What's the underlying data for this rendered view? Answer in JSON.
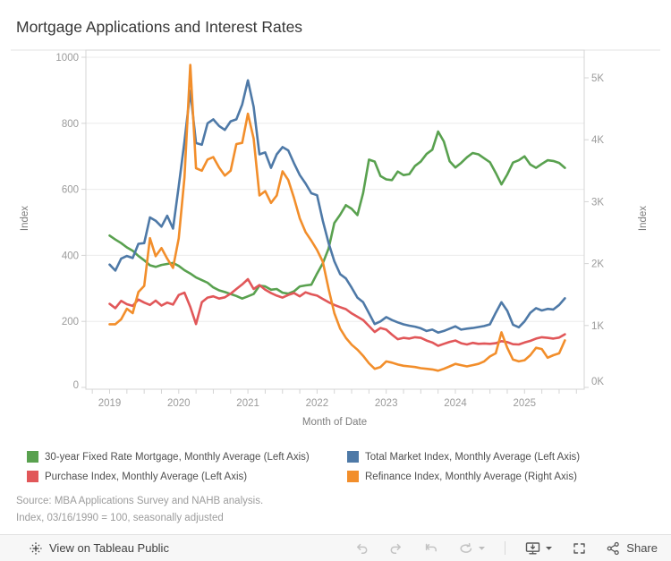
{
  "header": {
    "title": "Mortgage Applications and Interest Rates"
  },
  "chart_data": {
    "type": "line",
    "title": "Mortgage Applications and Interest Rates",
    "xlabel": "Month of Date",
    "x_axis": {
      "title": "Month of Date",
      "tick_years": [
        2019,
        2020,
        2021,
        2022,
        2023,
        2024,
        2025
      ],
      "tick_labels": [
        "2019",
        "2020",
        "2021",
        "2022",
        "2023",
        "2024",
        "2025"
      ],
      "start_month": "2019-01",
      "end_month": "2025-08",
      "minor_ticks": "quarterly"
    },
    "left_axis": {
      "title": "Index",
      "ticks": [
        0,
        200,
        400,
        600,
        800,
        1000
      ],
      "tick_labels": [
        "0",
        "200",
        "400",
        "600",
        "800",
        "1000"
      ],
      "range": [
        0,
        1022
      ]
    },
    "right_axis": {
      "title": "Index",
      "ticks": [
        0,
        1,
        2,
        3,
        4,
        5
      ],
      "tick_labels": [
        "0K",
        "1K",
        "2K",
        "3K",
        "4K",
        "5K"
      ],
      "range_k": [
        0,
        5.45
      ]
    },
    "grid": "horizontal",
    "legend_position": "bottom",
    "series": [
      {
        "name": "30-year Fixed Rate Mortgage, Monthly Average (Left Axis)",
        "axis": "left",
        "color": "#59a14f",
        "values": [
          460,
          448,
          437,
          424,
          414,
          398,
          385,
          370,
          365,
          371,
          374,
          377,
          368,
          355,
          345,
          333,
          325,
          317,
          303,
          294,
          289,
          283,
          277,
          269,
          276,
          283,
          308,
          306,
          296,
          298,
          287,
          284,
          291,
          306,
          309,
          311,
          345,
          376,
          421,
          498,
          523,
          552,
          541,
          522,
          589,
          690,
          684,
          640,
          630,
          628,
          654,
          643,
          646,
          671,
          684,
          707,
          720,
          775,
          745,
          685,
          666,
          680,
          697,
          710,
          706,
          694,
          682,
          650,
          615,
          645,
          681,
          688,
          700,
          675,
          665,
          677,
          688,
          686,
          680,
          665
        ]
      },
      {
        "name": "Total Market Index, Monthly Average (Left Axis)",
        "axis": "left",
        "color": "#4e79a7",
        "values": [
          372,
          354,
          390,
          398,
          392,
          435,
          437,
          515,
          505,
          487,
          520,
          481,
          610,
          745,
          898,
          740,
          735,
          800,
          812,
          792,
          780,
          806,
          812,
          857,
          930,
          850,
          706,
          712,
          665,
          706,
          728,
          718,
          679,
          643,
          618,
          588,
          582,
          505,
          437,
          382,
          343,
          330,
          302,
          272,
          258,
          225,
          192,
          200,
          213,
          204,
          197,
          191,
          187,
          184,
          179,
          171,
          175,
          166,
          171,
          178,
          185,
          175,
          178,
          180,
          183,
          186,
          191,
          226,
          258,
          232,
          190,
          182,
          200,
          226,
          240,
          233,
          238,
          236,
          250,
          270
        ]
      },
      {
        "name": "Purchase Index, Monthly Average (Left Axis)",
        "axis": "left",
        "color": "#e15759",
        "values": [
          253,
          240,
          262,
          252,
          247,
          266,
          257,
          250,
          263,
          248,
          257,
          251,
          280,
          287,
          244,
          192,
          258,
          272,
          276,
          269,
          273,
          284,
          298,
          312,
          328,
          298,
          310,
          296,
          286,
          278,
          272,
          280,
          286,
          276,
          288,
          282,
          278,
          268,
          258,
          250,
          243,
          237,
          224,
          214,
          204,
          186,
          168,
          180,
          175,
          160,
          146,
          150,
          148,
          152,
          150,
          142,
          136,
          126,
          132,
          138,
          142,
          134,
          130,
          135,
          132,
          133,
          132,
          134,
          140,
          137,
          131,
          130,
          136,
          141,
          148,
          152,
          150,
          148,
          151,
          161
        ]
      },
      {
        "name": "Refinance Index, Monthly Average (Right Axis)",
        "axis": "right",
        "color": "#f28e2b",
        "values_k": [
          1.02,
          1.02,
          1.1,
          1.27,
          1.2,
          1.54,
          1.64,
          2.41,
          2.12,
          2.25,
          2.08,
          1.93,
          2.41,
          3.39,
          5.21,
          3.54,
          3.5,
          3.68,
          3.72,
          3.55,
          3.42,
          3.5,
          3.93,
          3.95,
          4.42,
          4.02,
          3.1,
          3.17,
          2.98,
          3.1,
          3.49,
          3.35,
          3.06,
          2.73,
          2.51,
          2.37,
          2.22,
          2.03,
          1.59,
          1.2,
          0.95,
          0.8,
          0.69,
          0.61,
          0.51,
          0.39,
          0.3,
          0.33,
          0.42,
          0.4,
          0.37,
          0.35,
          0.34,
          0.33,
          0.31,
          0.3,
          0.29,
          0.27,
          0.3,
          0.34,
          0.38,
          0.36,
          0.34,
          0.36,
          0.38,
          0.42,
          0.5,
          0.55,
          0.89,
          0.64,
          0.45,
          0.42,
          0.44,
          0.52,
          0.64,
          0.62,
          0.48,
          0.52,
          0.55,
          0.76
        ]
      }
    ]
  },
  "legend": {
    "items": [
      {
        "label": "30-year Fixed Rate Mortgage, Monthly Average (Left Axis)",
        "color": "#59a14f"
      },
      {
        "label": "Total Market Index, Monthly Average (Left Axis)",
        "color": "#4e79a7"
      },
      {
        "label": "Purchase Index, Monthly Average (Left Axis)",
        "color": "#e15759"
      },
      {
        "label": "Refinance Index, Monthly Average (Right Axis)",
        "color": "#f28e2b"
      }
    ]
  },
  "source": {
    "line1": "Source: MBA Applications Survey and NAHB analysis.",
    "line2": "Index, 03/16/1990 = 100, seasonally adjusted"
  },
  "toolbar": {
    "view_label": "View on Tableau Public",
    "share_label": "Share",
    "icons": [
      "tableau-logo-icon",
      "undo-icon",
      "redo-icon",
      "revert-icon",
      "refresh-icon",
      "refresh-options-caret-icon",
      "download-icon",
      "download-options-caret-icon",
      "fullscreen-icon",
      "share-icon"
    ]
  },
  "colors": {
    "grid": "#ebebeb",
    "pane_border": "#d4d4d4",
    "tick_label": "#9b9b9b",
    "axis_title": "#7d7d7d"
  }
}
